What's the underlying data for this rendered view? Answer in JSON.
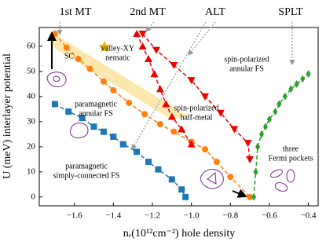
{
  "chart_data": {
    "type": "line",
    "xlabel": "nₑ(10¹²cm⁻²) hole density",
    "ylabel": "U (meV) interlayer potential",
    "xlim": [
      -1.78,
      -0.35
    ],
    "ylim": [
      -3.5,
      67.5
    ],
    "xticks": [
      {
        "value": -1.6,
        "label": "−1.6"
      },
      {
        "value": -1.4,
        "label": "−1.4"
      },
      {
        "value": -1.2,
        "label": "−1.2"
      },
      {
        "value": -1.0,
        "label": "−1.0"
      },
      {
        "value": -0.8,
        "label": "−0.8"
      },
      {
        "value": -0.6,
        "label": "−0.6"
      },
      {
        "value": -0.4,
        "label": "−0.4"
      }
    ],
    "yticks": [
      0,
      10,
      20,
      30,
      40,
      50,
      60
    ],
    "series": [
      {
        "color": "#ff7f0e",
        "marker": "circle",
        "x": [
          -1.7,
          -1.64,
          -1.58,
          -1.52,
          -1.45,
          -1.4,
          -1.32,
          -1.24,
          -1.16,
          -1.09,
          -1.0,
          -0.93,
          -0.87,
          -0.8,
          -0.7
        ],
        "values": [
          65,
          59.5,
          55,
          51,
          46,
          42.5,
          37.5,
          33,
          29,
          26,
          22,
          19,
          14,
          8,
          0
        ]
      },
      {
        "color": "#1f77b4",
        "marker": "square",
        "x": [
          -1.7,
          -1.63,
          -1.56,
          -1.5,
          -1.45,
          -1.4,
          -1.35,
          -1.28,
          -1.22,
          -1.17,
          -1.1,
          -1.05,
          -1.03
        ],
        "values": [
          37,
          34,
          31.5,
          28,
          26,
          24,
          21,
          18,
          14,
          11,
          7,
          3,
          0
        ]
      },
      {
        "color": "#ee0000",
        "marker": "triangle-up",
        "x": [
          -1.28,
          -1.25,
          -1.22,
          -1.19,
          -1.16,
          -1.13,
          -1.1,
          -1.05,
          -1.0
        ],
        "values": [
          65,
          60,
          55,
          49,
          43,
          37,
          32,
          27,
          21
        ]
      },
      {
        "color": "#ee0000",
        "marker": "triangle-down",
        "x": [
          -1.25,
          -1.18,
          -1.09,
          -1.0,
          -0.93,
          -0.85,
          -0.78,
          -0.71,
          -0.7
        ],
        "values": [
          65,
          58.5,
          52.5,
          46.5,
          40,
          33.5,
          27,
          21.5,
          15
        ]
      },
      {
        "color": "#2ca02c",
        "marker": "diamond",
        "x": [
          -0.68,
          -0.67,
          -0.66,
          -0.64,
          -0.62,
          -0.6,
          -0.57,
          -0.55,
          -0.52,
          -0.49,
          -0.46,
          -0.43,
          -0.4
        ],
        "values": [
          0,
          10,
          20,
          25,
          28,
          31,
          34,
          37,
          40,
          43,
          45,
          47,
          49
        ]
      }
    ],
    "annotations": [
      {
        "lines": [
          "1st MT"
        ]
      },
      {
        "lines": [
          "2nd MT"
        ]
      },
      {
        "lines": [
          "ALT"
        ]
      },
      {
        "lines": [
          "SPLT"
        ]
      },
      {
        "lines": [
          "SC"
        ]
      },
      {
        "lines": [
          "valley-XY",
          "nematic"
        ]
      },
      {
        "lines": [
          "spin-polarized",
          "annular FS"
        ]
      },
      {
        "lines": [
          "spin-polarized",
          "half-metal"
        ]
      },
      {
        "lines": [
          "paramagnetic",
          "annular FS"
        ]
      },
      {
        "lines": [
          "paramagnetic",
          "simply-connected FS"
        ]
      },
      {
        "lines": [
          "three",
          "Fermi pockets"
        ]
      }
    ]
  }
}
